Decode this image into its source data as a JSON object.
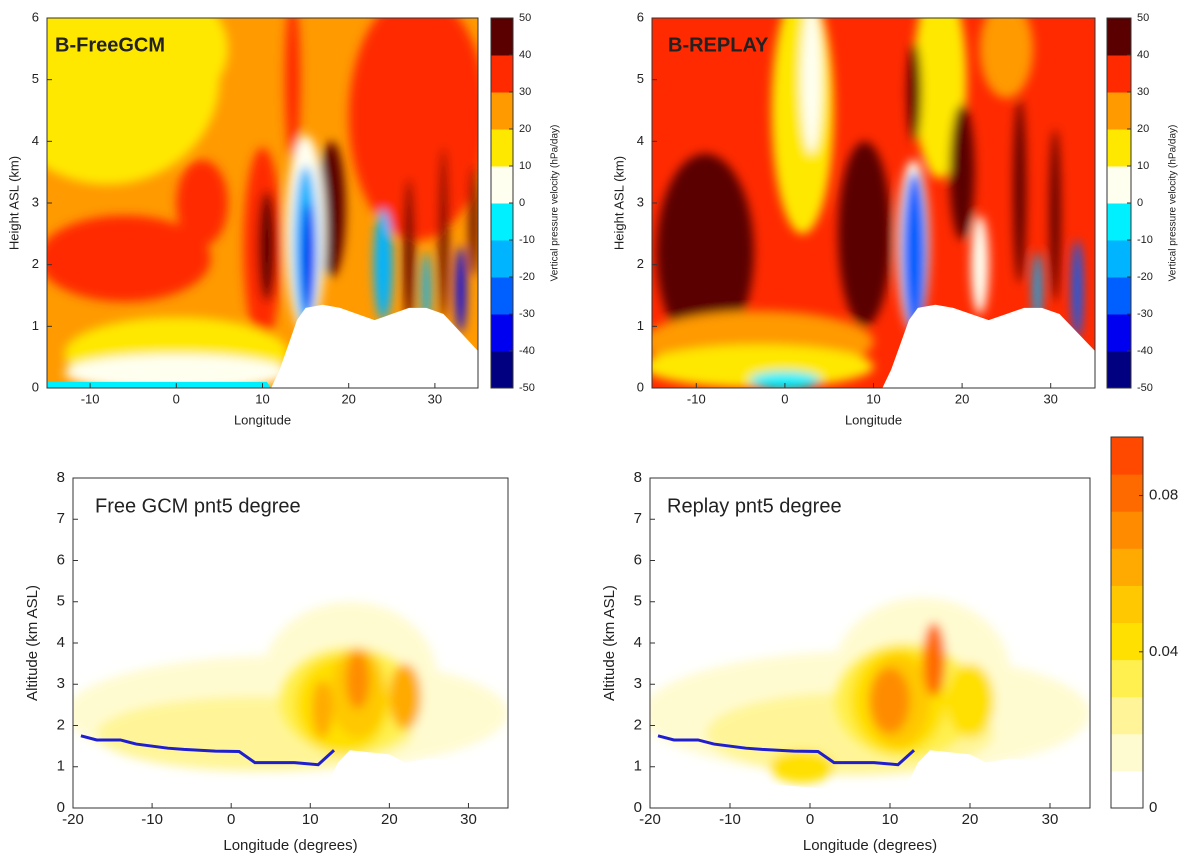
{
  "chart_data": [
    {
      "type": "contour",
      "title": "B-FreeGCM",
      "xlabel": "Longitude",
      "ylabel": "Height ASL (km)",
      "xlim": [
        -15,
        35
      ],
      "xticks": [
        -10,
        0,
        10,
        20,
        30
      ],
      "ylim": [
        0,
        6
      ],
      "yticks": [
        0,
        1,
        2,
        3,
        4,
        5,
        6
      ],
      "colorbar": {
        "label": "Vertical pressure velocity (hPa/day)",
        "lim": [
          -50,
          50
        ],
        "ticks": [
          -50,
          -40,
          -30,
          -20,
          -10,
          0,
          10,
          20,
          30,
          40,
          50
        ],
        "colors": [
          "#000080",
          "#0000f0",
          "#0060ff",
          "#00b4ff",
          "#00f0ff",
          "#fffff0",
          "#ffe800",
          "#ff9a00",
          "#ff2a00",
          "#5a0000"
        ]
      }
    },
    {
      "type": "contour",
      "title": "B-REPLAY",
      "xlabel": "Longitude",
      "ylabel": "Height ASL (km)",
      "xlim": [
        -15,
        35
      ],
      "xticks": [
        -10,
        0,
        10,
        20,
        30
      ],
      "ylim": [
        0,
        6
      ],
      "yticks": [
        0,
        1,
        2,
        3,
        4,
        5,
        6
      ],
      "colorbar": {
        "label": "Vertical pressure velocity (hPa/day)",
        "lim": [
          -50,
          50
        ],
        "ticks": [
          -50,
          -40,
          -30,
          -20,
          -10,
          0,
          10,
          20,
          30,
          40,
          50
        ],
        "colors": [
          "#000080",
          "#0000f0",
          "#0060ff",
          "#00b4ff",
          "#00f0ff",
          "#fffff0",
          "#ffe800",
          "#ff9a00",
          "#ff2a00",
          "#5a0000"
        ]
      }
    },
    {
      "type": "contour",
      "title": "Free GCM pnt5 degree",
      "xlabel": "Longitude (degrees)",
      "ylabel": "Altitude (km ASL)",
      "xlim": [
        -20,
        35
      ],
      "xticks": [
        -20,
        -10,
        0,
        10,
        20,
        30
      ],
      "ylim": [
        0,
        8
      ],
      "yticks": [
        0,
        1,
        2,
        3,
        4,
        5,
        6,
        7,
        8
      ],
      "x": [
        -19,
        -17,
        -14,
        -12,
        -8,
        -6,
        -4,
        -2,
        1,
        3,
        8,
        11,
        13
      ],
      "series": [
        {
          "color": "#1f1fd0",
          "values": [
            1.75,
            1.65,
            1.65,
            1.55,
            1.45,
            1.42,
            1.4,
            1.38,
            1.37,
            1.1,
            1.1,
            1.05,
            1.4
          ]
        }
      ]
    },
    {
      "type": "contour",
      "title": "Replay pnt5 degree",
      "xlabel": "Longitude (degrees)",
      "ylabel": "Altitude (km ASL)",
      "xlim": [
        -20,
        35
      ],
      "xticks": [
        -20,
        -10,
        0,
        10,
        20,
        30
      ],
      "ylim": [
        0,
        8
      ],
      "yticks": [
        0,
        1,
        2,
        3,
        4,
        5,
        6,
        7,
        8
      ],
      "x": [
        -19,
        -17,
        -14,
        -12,
        -8,
        -6,
        -4,
        -2,
        1,
        3,
        8,
        11,
        13
      ],
      "series": [
        {
          "color": "#1f1fd0",
          "values": [
            1.75,
            1.65,
            1.65,
            1.55,
            1.45,
            1.42,
            1.4,
            1.38,
            1.37,
            1.1,
            1.1,
            1.05,
            1.4
          ]
        }
      ],
      "colorbar": {
        "lim": [
          0,
          0.095
        ],
        "ticks": [
          0,
          0.04,
          0.08
        ],
        "colors": [
          "#ffffff",
          "#fffbd0",
          "#fff598",
          "#fff050",
          "#ffe000",
          "#ffc800",
          "#ffaa00",
          "#ff8c00",
          "#ff6a00",
          "#ff4800"
        ]
      }
    }
  ]
}
